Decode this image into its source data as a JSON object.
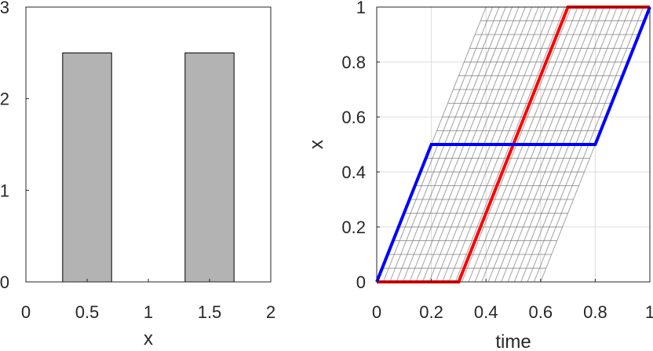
{
  "chart_data": [
    {
      "type": "bar",
      "title": "",
      "xlabel": "x",
      "ylabel": "",
      "xlim": [
        0,
        2
      ],
      "ylim": [
        0,
        3
      ],
      "xticks": [
        "0",
        "0.5",
        "1",
        "1.5",
        "2"
      ],
      "yticks": [
        "0",
        "1",
        "2",
        "3"
      ],
      "grid": false,
      "bar_color": "#b3b3b3",
      "bars": [
        {
          "x_start": 0.3,
          "x_end": 0.7,
          "value": 2.5
        },
        {
          "x_start": 1.3,
          "x_end": 1.7,
          "value": 2.5
        }
      ]
    },
    {
      "type": "line",
      "title": "",
      "xlabel": "time",
      "ylabel": "x",
      "xlim": [
        0,
        1
      ],
      "ylim": [
        0,
        1
      ],
      "xticks": [
        "0",
        "0.2",
        "0.4",
        "0.6",
        "0.8",
        "1"
      ],
      "yticks": [
        "0",
        "0.2",
        "0.4",
        "0.6",
        "0.8",
        "1"
      ],
      "grid": true,
      "series": [
        {
          "color": "#ff0000",
          "x": [
            0,
            0.3,
            0.7,
            1
          ],
          "y": [
            0,
            0,
            1,
            1
          ]
        },
        {
          "color": "#0000ff",
          "x": [
            0,
            0.2,
            0.8,
            1
          ],
          "y": [
            0,
            0.5,
            0.5,
            1
          ]
        }
      ],
      "background_mesh": {
        "color": "#808080",
        "shift_range": [
          0,
          0.6
        ],
        "rows": 20,
        "columns": 25
      }
    }
  ]
}
